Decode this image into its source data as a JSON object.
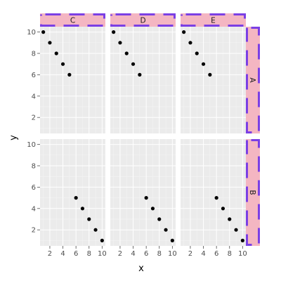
{
  "chart_data": {
    "type": "scatter",
    "xlabel": "x",
    "ylabel": "y",
    "xlim": [
      0.5,
      10.5
    ],
    "ylim": [
      0.5,
      10.5
    ],
    "x_ticks": [
      2,
      4,
      6,
      8,
      10
    ],
    "y_ticks": [
      2,
      4,
      6,
      8,
      10
    ],
    "grid": true,
    "facet_cols": [
      "C",
      "D",
      "E"
    ],
    "facet_rows": [
      "A",
      "B"
    ],
    "panels": [
      {
        "col": "C",
        "row": "A",
        "points": [
          [
            1,
            10
          ],
          [
            2,
            9
          ],
          [
            3,
            8
          ],
          [
            4,
            7
          ],
          [
            5,
            6
          ]
        ]
      },
      {
        "col": "D",
        "row": "A",
        "points": [
          [
            1,
            10
          ],
          [
            2,
            9
          ],
          [
            3,
            8
          ],
          [
            4,
            7
          ],
          [
            5,
            6
          ]
        ]
      },
      {
        "col": "E",
        "row": "A",
        "points": [
          [
            1,
            10
          ],
          [
            2,
            9
          ],
          [
            3,
            8
          ],
          [
            4,
            7
          ],
          [
            5,
            6
          ]
        ]
      },
      {
        "col": "C",
        "row": "B",
        "points": [
          [
            6,
            5
          ],
          [
            7,
            4
          ],
          [
            8,
            3
          ],
          [
            9,
            2
          ],
          [
            10,
            1
          ]
        ]
      },
      {
        "col": "D",
        "row": "B",
        "points": [
          [
            6,
            5
          ],
          [
            7,
            4
          ],
          [
            8,
            3
          ],
          [
            9,
            2
          ],
          [
            10,
            1
          ]
        ]
      },
      {
        "col": "E",
        "row": "B",
        "points": [
          [
            6,
            5
          ],
          [
            7,
            4
          ],
          [
            8,
            3
          ],
          [
            9,
            2
          ],
          [
            10,
            1
          ]
        ]
      }
    ],
    "colors": {
      "panel_background": "#ebebeb",
      "grid_major": "#ffffff",
      "grid_minor": "#f5f5f5",
      "strip_fill": "#f4b6c2",
      "strip_border": "#7b3fe4",
      "point": "#000000"
    }
  }
}
